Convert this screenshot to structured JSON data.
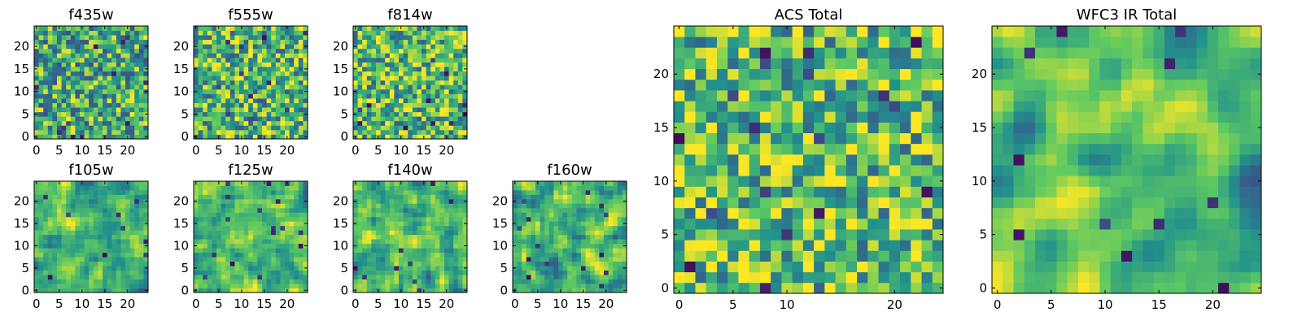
{
  "chart_data": [
    {
      "type": "heatmap",
      "title": "f435w",
      "grid_size": 25,
      "xlim": [
        -0.5,
        24.5
      ],
      "ylim": [
        -0.5,
        24.5
      ],
      "xticks": [
        0,
        5,
        10,
        15,
        20
      ],
      "yticks": [
        0,
        5,
        10,
        15,
        20
      ],
      "colormap": "viridis",
      "seed": 11,
      "smoothness": 0,
      "bias": 0.62
    },
    {
      "type": "heatmap",
      "title": "f555w",
      "grid_size": 25,
      "xlim": [
        -0.5,
        24.5
      ],
      "ylim": [
        -0.5,
        24.5
      ],
      "xticks": [
        0,
        5,
        10,
        15,
        20
      ],
      "yticks": [
        0,
        5,
        10,
        15,
        20
      ],
      "colormap": "viridis",
      "seed": 23,
      "smoothness": 0,
      "bias": 0.66
    },
    {
      "type": "heatmap",
      "title": "f814w",
      "grid_size": 25,
      "xlim": [
        -0.5,
        24.5
      ],
      "ylim": [
        -0.5,
        24.5
      ],
      "xticks": [
        0,
        5,
        10,
        15,
        20
      ],
      "yticks": [
        0,
        5,
        10,
        15,
        20
      ],
      "colormap": "viridis",
      "seed": 37,
      "smoothness": 0,
      "bias": 0.68
    },
    {
      "type": "heatmap",
      "title": "f105w",
      "grid_size": 25,
      "xlim": [
        -0.5,
        24.5
      ],
      "ylim": [
        -0.5,
        24.5
      ],
      "xticks": [
        0,
        5,
        10,
        15,
        20
      ],
      "yticks": [
        0,
        5,
        10,
        15,
        20
      ],
      "colormap": "viridis",
      "seed": 41,
      "smoothness": 1,
      "bias": 0.64
    },
    {
      "type": "heatmap",
      "title": "f125w",
      "grid_size": 25,
      "xlim": [
        -0.5,
        24.5
      ],
      "ylim": [
        -0.5,
        24.5
      ],
      "xticks": [
        0,
        5,
        10,
        15,
        20
      ],
      "yticks": [
        0,
        5,
        10,
        15,
        20
      ],
      "colormap": "viridis",
      "seed": 53,
      "smoothness": 1,
      "bias": 0.68
    },
    {
      "type": "heatmap",
      "title": "f140w",
      "grid_size": 25,
      "xlim": [
        -0.5,
        24.5
      ],
      "ylim": [
        -0.5,
        24.5
      ],
      "xticks": [
        0,
        5,
        10,
        15,
        20
      ],
      "yticks": [
        0,
        5,
        10,
        15,
        20
      ],
      "colormap": "viridis",
      "seed": 67,
      "smoothness": 1,
      "bias": 0.64
    },
    {
      "type": "heatmap",
      "title": "f160w",
      "grid_size": 25,
      "xlim": [
        -0.5,
        24.5
      ],
      "ylim": [
        -0.5,
        24.5
      ],
      "xticks": [
        0,
        5,
        10,
        15,
        20
      ],
      "yticks": [
        0,
        5,
        10,
        15,
        20
      ],
      "colormap": "viridis",
      "seed": 79,
      "smoothness": 1,
      "bias": 0.66
    },
    {
      "type": "heatmap",
      "title": "ACS Total",
      "grid_size": 25,
      "xlim": [
        -0.5,
        24.5
      ],
      "ylim": [
        -0.5,
        24.5
      ],
      "xticks": [
        0,
        5,
        10,
        20
      ],
      "yticks": [
        0,
        5,
        10,
        15,
        20
      ],
      "colormap": "viridis",
      "seed": 97,
      "smoothness": 0,
      "bias": 0.7
    },
    {
      "type": "heatmap",
      "title": "WFC3 IR Total",
      "grid_size": 25,
      "xlim": [
        -0.5,
        24.5
      ],
      "ylim": [
        -0.5,
        24.5
      ],
      "xticks": [
        0,
        5,
        10,
        15,
        20
      ],
      "yticks": [
        0,
        5,
        10,
        15,
        20
      ],
      "colormap": "viridis",
      "seed": 113,
      "smoothness": 2,
      "bias": 0.64
    }
  ],
  "colors": {
    "viridis_stops": [
      "#440154",
      "#3b528b",
      "#21918c",
      "#5ec962",
      "#fde725"
    ]
  }
}
